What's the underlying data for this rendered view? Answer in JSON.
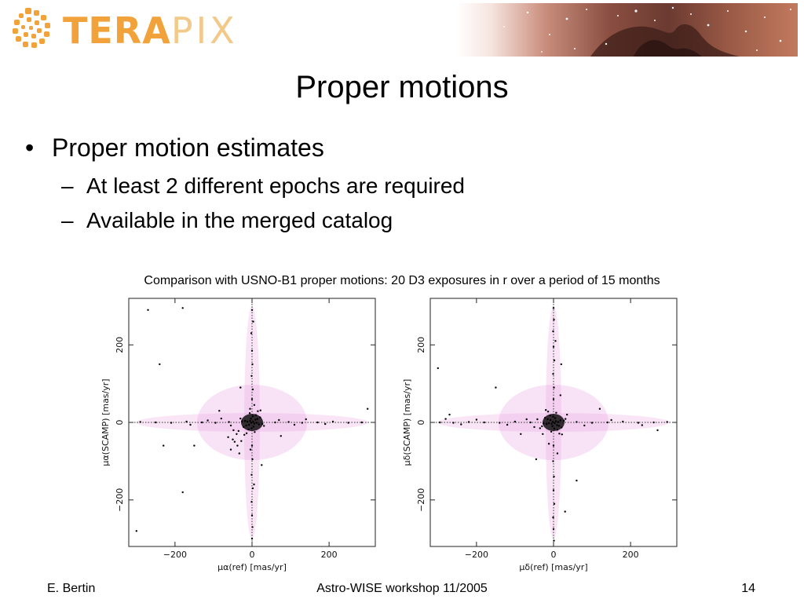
{
  "header": {
    "logo": {
      "text_a": "TERA",
      "text_b": "PIX"
    }
  },
  "slide": {
    "title": "Proper motions",
    "bullet": "Proper motion estimates",
    "subbullets": [
      "At least 2 different epochs are required",
      "Available in the merged catalog"
    ],
    "bullet_marker": "•",
    "sub_marker": "–"
  },
  "caption": "Comparison with USNO-B1 proper motions: 20 D3 exposures in r over a period of 15 months",
  "chart_data": [
    {
      "type": "scatter",
      "title": "",
      "xlabel": "μα(ref) [mas/yr]",
      "ylabel": "μα(SCAMP) [mas/yr]",
      "xlim": [
        -320,
        320
      ],
      "ylim": [
        -320,
        320
      ],
      "xticks": [
        -200,
        0,
        200
      ],
      "yticks": [
        -200,
        0,
        200
      ],
      "x_tick_labels": [
        "−200",
        "0",
        "200"
      ],
      "y_tick_labels": [
        "−200",
        "0",
        "200"
      ],
      "grid": false,
      "point_color": "#000000",
      "cloud_color": "#e8a0e0",
      "points": [
        [
          -2,
          -1
        ],
        [
          3,
          2
        ],
        [
          -5,
          4
        ],
        [
          6,
          -3
        ],
        [
          -8,
          -6
        ],
        [
          9,
          7
        ],
        [
          -3,
          10
        ],
        [
          4,
          -11
        ],
        [
          -12,
          2
        ],
        [
          12,
          -1
        ],
        [
          -15,
          -8
        ],
        [
          14,
          9
        ],
        [
          -1,
          -15
        ],
        [
          2,
          16
        ],
        [
          -18,
          4
        ],
        [
          18,
          -5
        ],
        [
          -9,
          -18
        ],
        [
          10,
          19
        ],
        [
          -22,
          -12
        ],
        [
          21,
          13
        ],
        [
          -6,
          24
        ],
        [
          7,
          -25
        ],
        [
          -26,
          3
        ],
        [
          27,
          -4
        ],
        [
          -14,
          -28
        ],
        [
          15,
          29
        ],
        [
          -30,
          10
        ],
        [
          31,
          -9
        ],
        [
          -20,
          -32
        ],
        [
          22,
          31
        ],
        [
          -35,
          -22
        ],
        [
          -40,
          -30
        ],
        [
          -45,
          -50
        ],
        [
          -38,
          -60
        ],
        [
          -50,
          -44
        ],
        [
          -55,
          -70
        ],
        [
          -28,
          -48
        ],
        [
          -62,
          -38
        ],
        [
          -33,
          -80
        ],
        [
          -48,
          -20
        ],
        [
          0,
          60
        ],
        [
          2,
          85
        ],
        [
          -1,
          120
        ],
        [
          1,
          150
        ],
        [
          0,
          185
        ],
        [
          -2,
          230
        ],
        [
          3,
          260
        ],
        [
          0,
          290
        ],
        [
          0,
          -60
        ],
        [
          1,
          -95
        ],
        [
          -1,
          -135
        ],
        [
          2,
          -170
        ],
        [
          -1,
          -205
        ],
        [
          0,
          -240
        ],
        [
          1,
          -270
        ],
        [
          0,
          -300
        ],
        [
          60,
          0
        ],
        [
          95,
          1
        ],
        [
          130,
          -1
        ],
        [
          170,
          0
        ],
        [
          210,
          2
        ],
        [
          250,
          -1
        ],
        [
          285,
          0
        ],
        [
          -60,
          1
        ],
        [
          -95,
          -1
        ],
        [
          -130,
          0
        ],
        [
          -170,
          2
        ],
        [
          -210,
          -1
        ],
        [
          -250,
          0
        ],
        [
          -290,
          1
        ],
        [
          -55,
          -8
        ],
        [
          70,
          6
        ],
        [
          -80,
          10
        ],
        [
          110,
          -6
        ],
        [
          -115,
          5
        ],
        [
          140,
          8
        ],
        [
          -160,
          -6
        ],
        [
          190,
          -4
        ],
        [
          5,
          -160
        ],
        [
          -4,
          -70
        ],
        [
          6,
          45
        ],
        [
          -5,
          35
        ],
        [
          -85,
          30
        ],
        [
          75,
          -35
        ],
        [
          -180,
          -180
        ],
        [
          -300,
          -280
        ],
        [
          -270,
          290
        ],
        [
          -180,
          295
        ],
        [
          -240,
          150
        ],
        [
          -150,
          -60
        ],
        [
          25,
          -110
        ],
        [
          -30,
          90
        ],
        [
          300,
          35
        ],
        [
          -230,
          -60
        ]
      ]
    },
    {
      "type": "scatter",
      "title": "",
      "xlabel": "μδ(ref) [mas/yr]",
      "ylabel": "μδ(SCAMP) [mas/yr]",
      "xlim": [
        -320,
        320
      ],
      "ylim": [
        -320,
        320
      ],
      "xticks": [
        -200,
        0,
        200
      ],
      "yticks": [
        -200,
        0,
        200
      ],
      "x_tick_labels": [
        "−200",
        "0",
        "200"
      ],
      "y_tick_labels": [
        "−200",
        "0",
        "200"
      ],
      "grid": false,
      "point_color": "#000000",
      "cloud_color": "#e8a0e0",
      "points": [
        [
          -2,
          1
        ],
        [
          3,
          -2
        ],
        [
          -5,
          -4
        ],
        [
          6,
          3
        ],
        [
          -8,
          6
        ],
        [
          9,
          -7
        ],
        [
          -3,
          -10
        ],
        [
          4,
          11
        ],
        [
          -12,
          -2
        ],
        [
          12,
          1
        ],
        [
          -15,
          8
        ],
        [
          14,
          -9
        ],
        [
          -1,
          15
        ],
        [
          2,
          -16
        ],
        [
          -18,
          -4
        ],
        [
          18,
          5
        ],
        [
          -9,
          18
        ],
        [
          10,
          -19
        ],
        [
          -22,
          12
        ],
        [
          21,
          -13
        ],
        [
          -6,
          -24
        ],
        [
          7,
          25
        ],
        [
          -26,
          -3
        ],
        [
          27,
          4
        ],
        [
          -14,
          28
        ],
        [
          15,
          -29
        ],
        [
          -30,
          -10
        ],
        [
          31,
          9
        ],
        [
          -20,
          32
        ],
        [
          22,
          -31
        ],
        [
          -35,
          -15
        ],
        [
          -42,
          8
        ],
        [
          -50,
          -12
        ],
        [
          35,
          20
        ],
        [
          -28,
          -30
        ],
        [
          0,
          60
        ],
        [
          1,
          90
        ],
        [
          -1,
          125
        ],
        [
          2,
          160
        ],
        [
          0,
          195
        ],
        [
          -1,
          235
        ],
        [
          1,
          265
        ],
        [
          0,
          295
        ],
        [
          0,
          -60
        ],
        [
          -1,
          -100
        ],
        [
          1,
          -140
        ],
        [
          0,
          -175
        ],
        [
          2,
          -210
        ],
        [
          -1,
          -245
        ],
        [
          0,
          -275
        ],
        [
          1,
          -305
        ],
        [
          60,
          1
        ],
        [
          100,
          -1
        ],
        [
          140,
          0
        ],
        [
          180,
          2
        ],
        [
          220,
          -1
        ],
        [
          260,
          0
        ],
        [
          295,
          1
        ],
        [
          -60,
          0
        ],
        [
          -100,
          2
        ],
        [
          -140,
          -1
        ],
        [
          -180,
          0
        ],
        [
          -220,
          1
        ],
        [
          -260,
          -1
        ],
        [
          -295,
          0
        ],
        [
          -70,
          8
        ],
        [
          -120,
          -6
        ],
        [
          -200,
          7
        ],
        [
          -240,
          -5
        ],
        [
          -280,
          9
        ],
        [
          80,
          -8
        ],
        [
          150,
          6
        ],
        [
          230,
          -7
        ],
        [
          20,
          150
        ],
        [
          18,
          70
        ],
        [
          -12,
          -55
        ],
        [
          10,
          -80
        ],
        [
          -300,
          140
        ],
        [
          -45,
          -95
        ],
        [
          60,
          -150
        ],
        [
          -150,
          90
        ],
        [
          5,
          210
        ],
        [
          -270,
          20
        ],
        [
          270,
          -20
        ],
        [
          120,
          35
        ],
        [
          -85,
          -30
        ],
        [
          30,
          -230
        ]
      ]
    }
  ],
  "footer": {
    "author": "E. Bertin",
    "event": "Astro-WISE workshop 11/2005",
    "page": "14"
  }
}
